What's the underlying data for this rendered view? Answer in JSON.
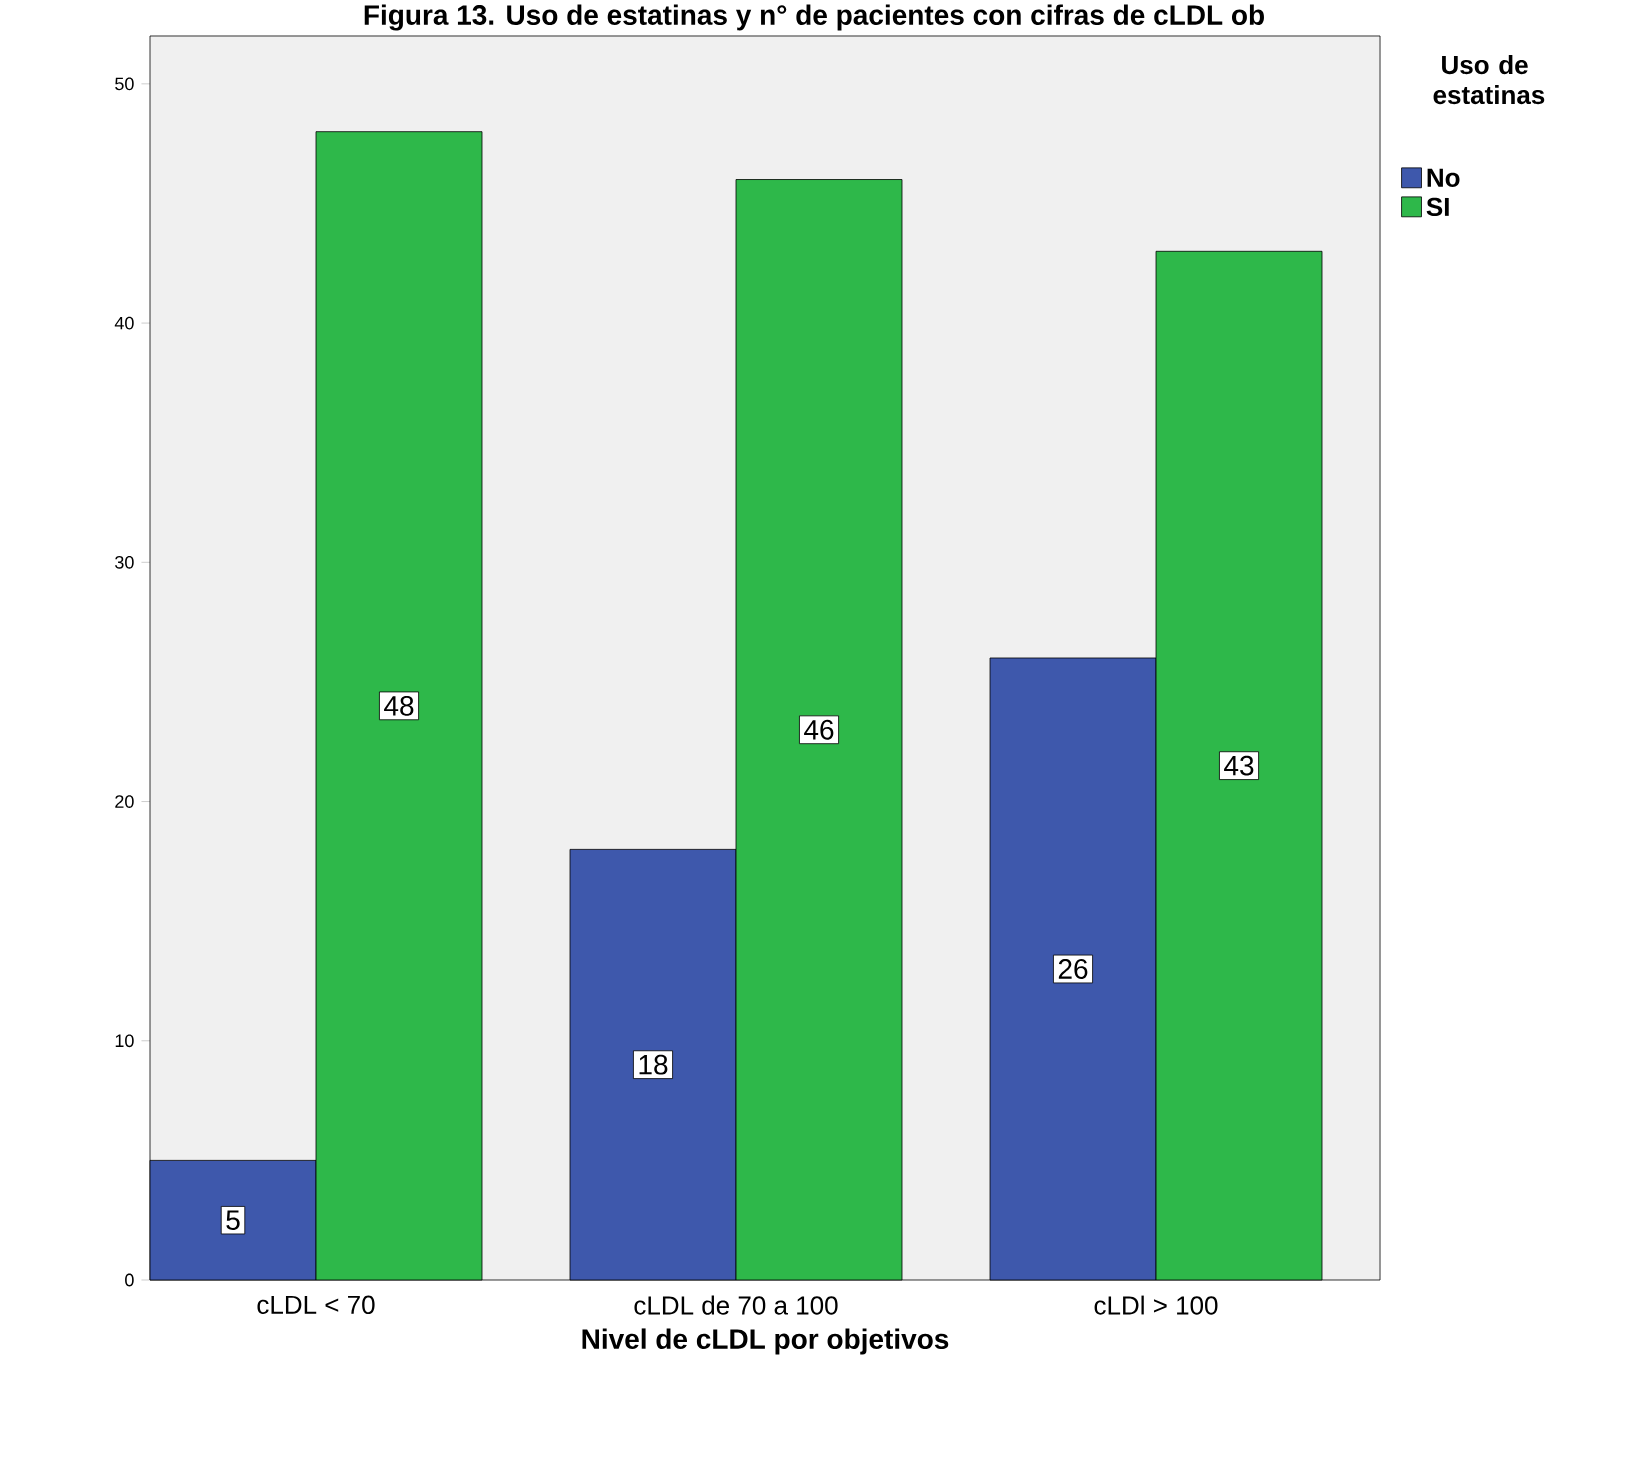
{
  "chart_data": {
    "type": "bar",
    "title": "Figura 13. Uso de estatinas y n° de pacientes con cifras de cLDL ob",
    "xlabel": "Nivel de cLDL por objetivos",
    "legend_title": "Uso de estatinas",
    "categories": [
      "cLDL < 70",
      "cLDL de 70 a 100",
      "cLDl > 100"
    ],
    "series": [
      {
        "name": "No",
        "color": "#3e58ac",
        "values": [
          5,
          18,
          26
        ]
      },
      {
        "name": "SI",
        "color": "#2eb84a",
        "values": [
          48,
          46,
          43
        ]
      }
    ],
    "ylim": [
      0,
      52
    ],
    "yticks": [
      0,
      10,
      20,
      30,
      40,
      50
    ],
    "grid": false,
    "legend": "right",
    "data_labels": true
  }
}
